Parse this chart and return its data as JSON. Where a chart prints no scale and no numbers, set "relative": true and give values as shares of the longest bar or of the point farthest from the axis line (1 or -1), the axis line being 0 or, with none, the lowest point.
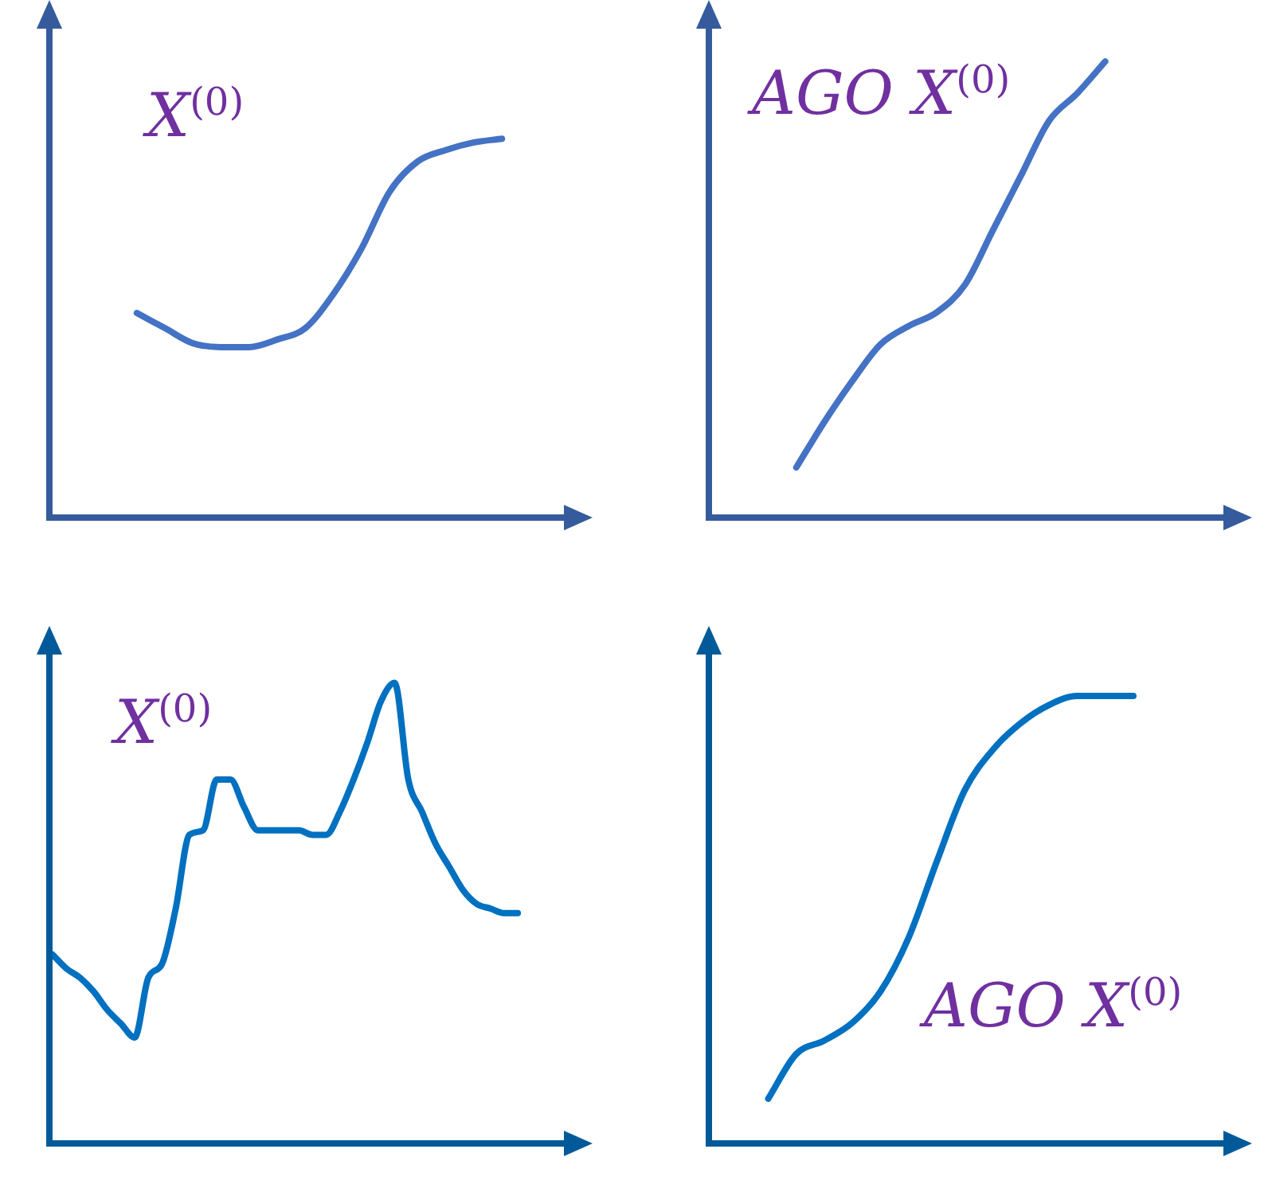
{
  "chart_data": [
    {
      "type": "line",
      "relative": true,
      "tick_labels": false,
      "legend": false,
      "marker": "none",
      "line_style": "solid",
      "annotations": [
        "X$^{(0)}$"
      ],
      "color": "#4472c4",
      "categories": [
        null,
        null,
        null,
        null,
        null,
        null,
        null,
        null,
        null,
        null,
        null,
        null,
        null,
        null,
        null,
        null,
        null,
        null,
        null,
        null
      ],
      "values": [
        null,
        null,
        null,
        0.54,
        0.5,
        0.46,
        0.45,
        0.45,
        0.47,
        0.5,
        0.59,
        0.71,
        0.86,
        0.94,
        0.97,
        0.99,
        1,
        null,
        null,
        null
      ]
    },
    {
      "type": "line",
      "relative": true,
      "tick_labels": false,
      "legend": false,
      "marker": "none",
      "line_style": "solid",
      "annotations": [
        "AGO X$^{(0)}$"
      ],
      "color": "#4472c4",
      "categories": [
        null,
        null,
        null,
        null,
        null,
        null,
        null,
        null,
        null,
        null,
        null,
        null,
        null,
        null,
        null,
        null,
        null,
        null,
        null,
        null
      ],
      "values": [
        null,
        null,
        null,
        0.11,
        0.21,
        0.3,
        0.38,
        0.42,
        0.45,
        0.51,
        0.63,
        0.75,
        0.87,
        0.93,
        1,
        null,
        null,
        null,
        null,
        null
      ]
    },
    {
      "type": "line",
      "relative": true,
      "tick_labels": false,
      "legend": false,
      "marker": "none",
      "line_style": "solid",
      "annotations": [
        "X$^{(0)}$"
      ],
      "color": "#0070c0",
      "categories": [
        null,
        null,
        null,
        null,
        null,
        null,
        null,
        null,
        null,
        null,
        null,
        null,
        null,
        null,
        null,
        null,
        null,
        null,
        null,
        null,
        null,
        null,
        null,
        null,
        null,
        null,
        null,
        null,
        null,
        null,
        null,
        null,
        null,
        null,
        null,
        null,
        null,
        null,
        null,
        null
      ],
      "values": [
        0.41,
        0.38,
        0.36,
        0.33,
        0.29,
        0.26,
        0.23,
        0.36,
        0.39,
        0.51,
        0.67,
        0.68,
        0.79,
        0.79,
        0.73,
        0.68,
        0.68,
        0.68,
        0.68,
        0.67,
        0.67,
        0.72,
        0.79,
        0.87,
        0.96,
        1,
        0.79,
        0.72,
        0.65,
        0.6,
        0.55,
        0.52,
        0.51,
        0.5,
        0.5,
        null,
        null,
        null,
        null,
        null
      ]
    },
    {
      "type": "line",
      "relative": true,
      "tick_labels": false,
      "legend": false,
      "marker": "none",
      "line_style": "solid",
      "annotations": [
        "AGO X$^{(0)}$"
      ],
      "color": "#0070c0",
      "categories": [
        null,
        null,
        null,
        null,
        null,
        null,
        null,
        null,
        null,
        null,
        null,
        null,
        null,
        null,
        null,
        null,
        null,
        null,
        null,
        null
      ],
      "values": [
        null,
        null,
        0.1,
        0.2,
        0.23,
        0.27,
        0.34,
        0.46,
        0.63,
        0.79,
        0.88,
        0.94,
        0.98,
        1,
        1,
        1,
        null,
        null,
        null,
        null
      ]
    }
  ]
}
